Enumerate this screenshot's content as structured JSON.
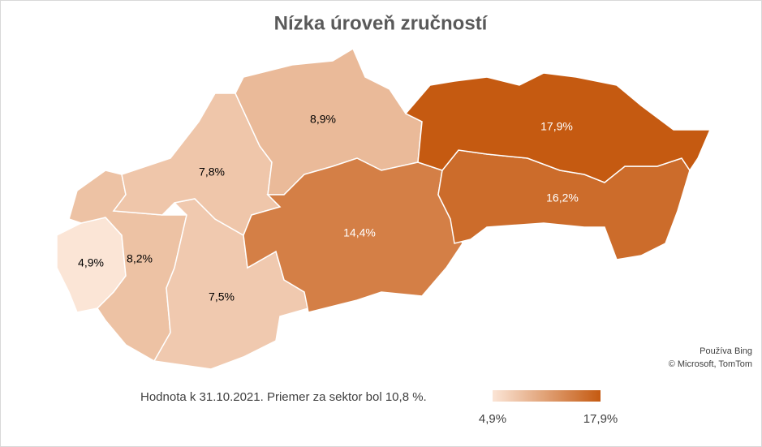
{
  "chart_data": {
    "type": "map",
    "title": "Nízka úroveň zručností",
    "values": [
      4.9,
      8.2,
      7.5,
      7.8,
      8.9,
      14.4,
      16.2,
      17.9
    ],
    "value_labels": [
      "4,9%",
      "8,2%",
      "7,5%",
      "7,8%",
      "8,9%",
      "14,4%",
      "16,2%",
      "17,9%"
    ],
    "color_min": "#fbe5d6",
    "color_max": "#c55a11",
    "scale": [
      {
        "value": 4.9,
        "label": "4,9%"
      },
      {
        "value": 17.9,
        "label": "17,9%"
      }
    ],
    "note": "Hodnota k 31.10.2021. Priemer za sektor bol 10,8 %.",
    "attribution": [
      "Používa Bing",
      "© Microsoft, TomTom"
    ]
  }
}
